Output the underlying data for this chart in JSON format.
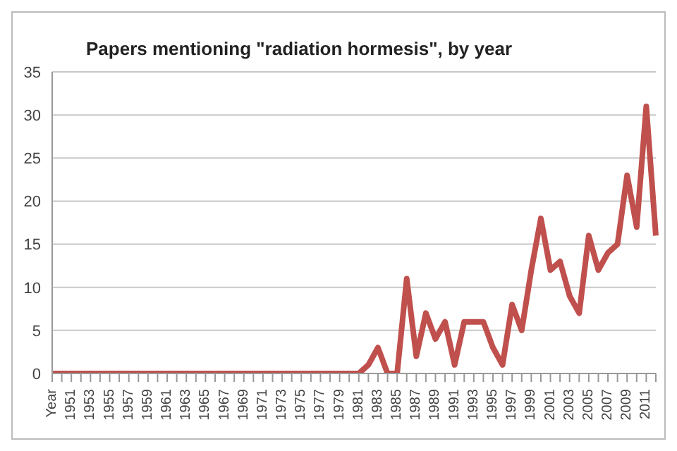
{
  "chart_data": {
    "type": "line",
    "title": "Papers mentioning \"radiation hormesis\", by year",
    "categories": [
      "Year",
      null,
      "1951",
      null,
      "1953",
      null,
      "1955",
      null,
      "1957",
      null,
      "1959",
      null,
      "1961",
      null,
      "1963",
      null,
      "1965",
      null,
      "1967",
      null,
      "1969",
      null,
      "1971",
      null,
      "1973",
      null,
      "1975",
      null,
      "1977",
      null,
      "1979",
      null,
      "1981",
      null,
      "1983",
      null,
      "1985",
      null,
      "1987",
      null,
      "1989",
      null,
      "1991",
      null,
      "1993",
      null,
      "1995",
      null,
      "1997",
      null,
      "1999",
      null,
      "2001",
      null,
      "2003",
      null,
      "2005",
      null,
      "2007",
      null,
      "2009",
      null,
      "2011",
      null
    ],
    "series": [
      {
        "color": "#c0504d",
        "values": [
          0,
          0,
          0,
          0,
          0,
          0,
          0,
          0,
          0,
          0,
          0,
          0,
          0,
          0,
          0,
          0,
          0,
          0,
          0,
          0,
          0,
          0,
          0,
          0,
          0,
          0,
          0,
          0,
          0,
          0,
          0,
          0,
          0,
          1,
          3,
          0,
          0,
          11,
          2,
          7,
          4,
          6,
          1,
          6,
          6,
          6,
          3,
          1,
          8,
          5,
          12,
          18,
          12,
          13,
          9,
          7,
          16,
          12,
          14,
          15,
          23,
          17,
          31,
          16
        ]
      }
    ],
    "ylim": [
      0,
      35
    ],
    "yticks": [
      0,
      5,
      10,
      15,
      20,
      25,
      30,
      35
    ],
    "grid": "y",
    "legend": false,
    "marker": "none",
    "line_style": "solid"
  }
}
